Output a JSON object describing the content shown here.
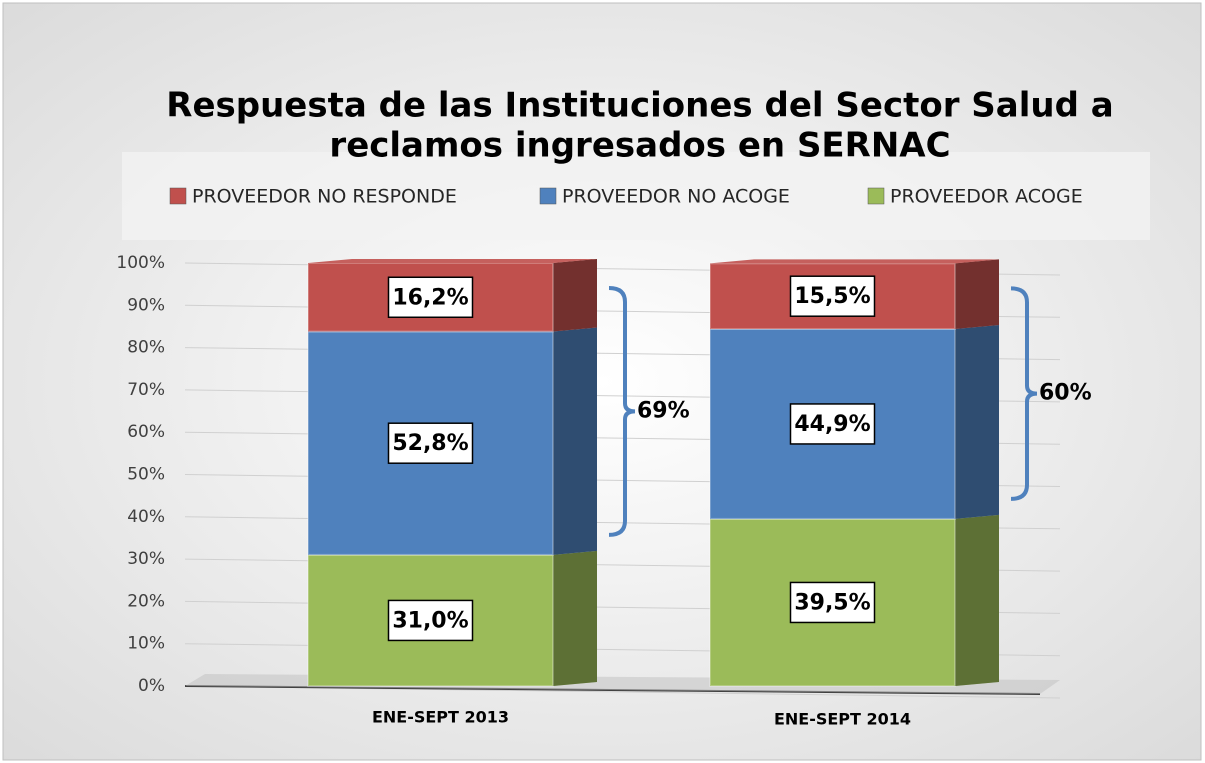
{
  "chart_data": {
    "type": "bar",
    "stacked": true,
    "title": "Respuesta de las Instituciones del Sector Salud a",
    "subtitle": "reclamos ingresados en SERNAC",
    "categories": [
      "ENE-SEPT 2013",
      "ENE-SEPT 2014"
    ],
    "series": [
      {
        "name": "PROVEEDOR ACOGE",
        "color": "#9bbb59",
        "values": [
          31.0,
          39.5
        ],
        "value_labels": [
          "31,0%",
          "39,5%"
        ]
      },
      {
        "name": "PROVEEDOR NO ACOGE",
        "color": "#4f81bd",
        "values": [
          52.8,
          44.9
        ],
        "value_labels": [
          "52,8%",
          "44,9%"
        ]
      },
      {
        "name": "PROVEEDOR NO RESPONDE",
        "color": "#c0504d",
        "values": [
          16.2,
          15.5
        ],
        "value_labels": [
          "16,2%",
          "15,5%"
        ]
      }
    ],
    "annotations": [
      "69%",
      "60%"
    ],
    "ylim": [
      0,
      100
    ],
    "yticks": [
      {
        "value": 0,
        "label": "0%"
      },
      {
        "value": 10,
        "label": "10%"
      },
      {
        "value": 20,
        "label": "20%"
      },
      {
        "value": 30,
        "label": "30%"
      },
      {
        "value": 40,
        "label": "40%"
      },
      {
        "value": 50,
        "label": "50%"
      },
      {
        "value": 60,
        "label": "60%"
      },
      {
        "value": 70,
        "label": "70%"
      },
      {
        "value": 80,
        "label": "80%"
      },
      {
        "value": 90,
        "label": "90%"
      },
      {
        "value": 100,
        "label": "100%"
      }
    ],
    "grid": true,
    "legend": "top"
  }
}
